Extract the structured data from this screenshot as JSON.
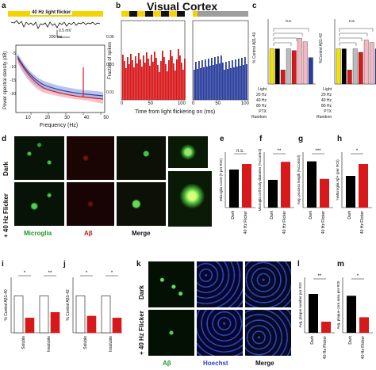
{
  "title": "Visual Cortex",
  "panels": {
    "a": {
      "label": "a",
      "banner": "40 Hz light flicker",
      "scale_v": "0.5 mV",
      "scale_t": "200 ms",
      "xlabel": "Frequency (Hz)",
      "ylabel": "Power spectral density (dB)",
      "xticks": [
        "10",
        "20",
        "30",
        "40",
        "50"
      ],
      "yticks": [
        "-5",
        "-10",
        "-15",
        "-20",
        "-25"
      ]
    },
    "b": {
      "label": "b",
      "xlabel": "Time from light flickering on (ms)",
      "ylabel": "Fraction of spikes",
      "xticks_left": [
        "0",
        "50",
        "100"
      ],
      "xticks_right": [
        "0",
        "50",
        "100"
      ],
      "yticks": [
        "0.06",
        "0.03",
        "0.01"
      ]
    },
    "c": {
      "label": "c",
      "ylabel_left": "% Control Aβ1-40",
      "ylabel_right": "%Control Aβ1-42",
      "rows": [
        "Light",
        "20 Hz",
        "40 Hz",
        "80 Hz",
        "PTX",
        "Random"
      ],
      "ns": [
        "n.s.",
        "n.s.",
        "n.s.",
        "n.s."
      ],
      "yticks": [
        "150",
        "100",
        "50",
        "0"
      ]
    },
    "d": {
      "label": "d",
      "row1": "Dark",
      "row2": "+ 40 Hz Flicker",
      "col1": "Microglia",
      "col2": "Aβ",
      "col3": "Merge"
    },
    "e": {
      "label": "e",
      "ylabel": "Microglia count (# per ROI)",
      "xticks": [
        "Dark",
        "40 Hz Flicker"
      ],
      "sig": "n.s."
    },
    "f": {
      "label": "f",
      "ylabel": "Microglia cell body diameter (%Control)",
      "xticks": [
        "Dark",
        "40 Hz Flicker"
      ],
      "sig": "**"
    },
    "g": {
      "label": "g",
      "ylabel": "Avg. process length (%Control)",
      "xticks": [
        "Dark",
        "40 Hz Flicker"
      ],
      "sig": "***"
    },
    "h": {
      "label": "h",
      "ylabel": "%Microglia Aβ+ (per ROI)",
      "xticks": [
        "Dark",
        "40 Hz Flicker"
      ],
      "sig": "*"
    },
    "i": {
      "label": "i",
      "ylabel": "% Control Aβ1-40",
      "xticks": [
        "Soluble",
        "Insoluble"
      ],
      "sig1": "*",
      "sig2": "**"
    },
    "j": {
      "label": "j",
      "ylabel": "% Control Aβ1-42",
      "xticks": [
        "Soluble",
        "Insoluble"
      ],
      "sig1": "*",
      "sig2": "*"
    },
    "k": {
      "label": "k",
      "row1": "Dark",
      "row2": "+ 40 Hz Flicker",
      "col1": "Aβ",
      "col2": "Hoechst",
      "col3": "Merge"
    },
    "l": {
      "label": "l",
      "ylabel": "Avg. plaque number per ROI",
      "xticks": [
        "Dark",
        "40 Hz Flicker"
      ],
      "sig": "**"
    },
    "m": {
      "label": "m",
      "ylabel": "Avg. plaque core area per ROI",
      "xticks": [
        "Dark",
        "40 Hz Flicker"
      ],
      "sig": "*"
    }
  },
  "chart_data": [
    {
      "id": "e",
      "type": "bar",
      "categories": [
        "Dark",
        "40 Hz Flicker"
      ],
      "values": [
        48,
        55
      ],
      "ylim": [
        0,
        70
      ]
    },
    {
      "id": "f",
      "type": "bar",
      "categories": [
        "Dark",
        "40 Hz Flicker"
      ],
      "values": [
        100,
        165
      ],
      "ylim": [
        0,
        200
      ]
    },
    {
      "id": "g",
      "type": "bar",
      "categories": [
        "Dark",
        "40 Hz Flicker"
      ],
      "values": [
        100,
        62
      ],
      "ylim": [
        0,
        120
      ]
    },
    {
      "id": "h",
      "type": "bar",
      "categories": [
        "Dark",
        "40 Hz Flicker"
      ],
      "values": [
        40,
        55
      ],
      "ylim": [
        0,
        70
      ]
    },
    {
      "id": "i",
      "type": "bar",
      "categories": [
        "Soluble",
        "Soluble",
        "Insoluble",
        "Insoluble"
      ],
      "values": [
        100,
        40,
        100,
        55
      ],
      "ylim": [
        0,
        150
      ]
    },
    {
      "id": "j",
      "type": "bar",
      "categories": [
        "Soluble",
        "Soluble",
        "Insoluble",
        "Insoluble"
      ],
      "values": [
        100,
        45,
        100,
        40
      ],
      "ylim": [
        0,
        150
      ]
    },
    {
      "id": "l",
      "type": "bar",
      "categories": [
        "Dark",
        "40 Hz Flicker"
      ],
      "values": [
        35,
        10
      ],
      "ylim": [
        0,
        50
      ]
    },
    {
      "id": "m",
      "type": "bar",
      "categories": [
        "Dark",
        "40 Hz Flicker"
      ],
      "values": [
        100,
        42
      ],
      "ylim": [
        0,
        150
      ]
    },
    {
      "id": "c_left",
      "type": "bar",
      "categories": [
        "1",
        "2",
        "3",
        "4",
        "5",
        "6",
        "7",
        "8"
      ],
      "values": [
        100,
        100,
        40,
        100,
        95,
        130,
        120,
        75
      ],
      "ylim": [
        0,
        180
      ]
    },
    {
      "id": "c_right",
      "type": "bar",
      "categories": [
        "1",
        "2",
        "3",
        "4",
        "5",
        "6",
        "7",
        "8"
      ],
      "values": [
        100,
        100,
        40,
        100,
        90,
        125,
        118,
        100
      ],
      "ylim": [
        0,
        180
      ]
    }
  ],
  "colors": {
    "dark_bar": "#000000",
    "flicker_bar": "#d7191c",
    "light_bar": "#f2e200",
    "blue": "#2a3e9c",
    "pink": "#f4b6c2",
    "microglia": "#2dbd2d",
    "abeta": "#c0181a",
    "hoechst": "#2f45c9"
  }
}
